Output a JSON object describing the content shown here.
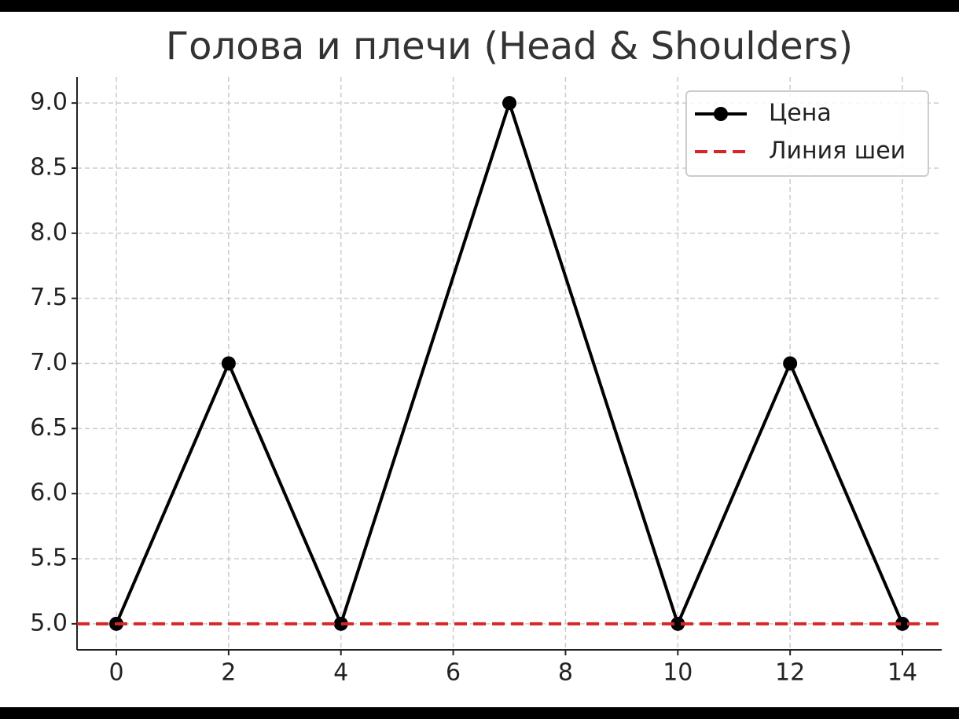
{
  "chart_data": {
    "type": "line",
    "title": "Голова и плечи (Head & Shoulders)",
    "series": [
      {
        "name": "Цена",
        "color": "#000000",
        "marker": "circle",
        "x": [
          0,
          2,
          4,
          7,
          10,
          12,
          14
        ],
        "values": [
          5,
          7,
          5,
          9,
          5,
          7,
          5
        ]
      }
    ],
    "hline": {
      "name": "Линия шеи",
      "color": "#d62728",
      "linestyle": "dashed",
      "value": 5
    },
    "xlim": [
      -0.7,
      14.7
    ],
    "xticks": [
      0,
      2,
      4,
      6,
      8,
      10,
      12,
      14
    ],
    "ylim": [
      4.8,
      9.2
    ],
    "yticks": [
      {
        "value": 5,
        "label": "5.0"
      },
      5.5,
      {
        "value": 6,
        "label": "6.0"
      },
      6.5,
      {
        "value": 7,
        "label": "7.0"
      },
      7.5,
      {
        "value": 8,
        "label": "8.0"
      },
      8.5,
      {
        "value": 9,
        "label": "9.0"
      }
    ],
    "grid": true,
    "legend": "upper right"
  }
}
